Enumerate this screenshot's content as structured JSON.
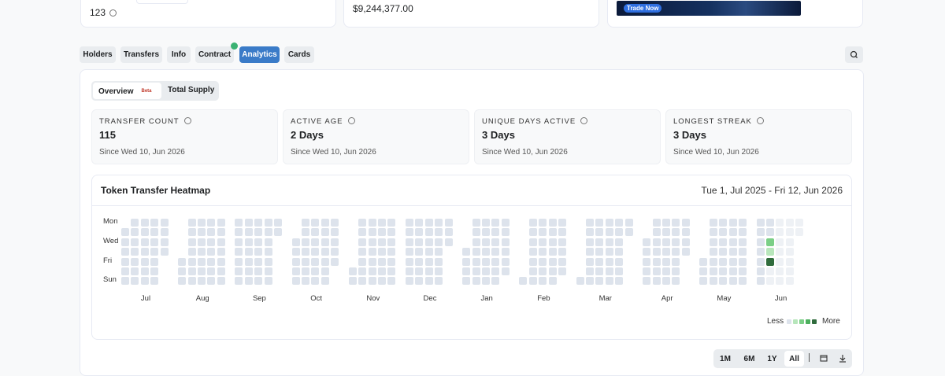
{
  "top_cards": {
    "holders_count": "123",
    "value": "$9,244,377.00",
    "banner_button": "Trade Now"
  },
  "tabs": [
    "Holders",
    "Transfers",
    "Info",
    "Contract",
    "Analytics",
    "Cards"
  ],
  "sub_tabs": {
    "overview": "Overview",
    "beta_badge": "Beta",
    "total_supply": "Total Supply"
  },
  "stats": [
    {
      "label": "TRANSFER COUNT",
      "value": "115",
      "since": "Since Wed 10, Jun 2026"
    },
    {
      "label": "ACTIVE AGE",
      "value": "2 Days",
      "since": "Since Wed 10, Jun 2026"
    },
    {
      "label": "UNIQUE DAYS ACTIVE",
      "value": "3 Days",
      "since": "Since Wed 10, Jun 2026"
    },
    {
      "label": "LONGEST STREAK",
      "value": "3 Days",
      "since": "Since Wed 10, Jun 2026"
    }
  ],
  "heatmap": {
    "title": "Token Transfer Heatmap",
    "range": "Tue 1, Jul 2025 - Fri 12, Jun 2026",
    "day_labels": [
      "Mon",
      "Wed",
      "Fri",
      "Sun"
    ],
    "month_labels": [
      "Jul",
      "Aug",
      "Sep",
      "Oct",
      "Nov",
      "Dec",
      "Jan",
      "Feb",
      "Mar",
      "Apr",
      "May",
      "Jun"
    ],
    "legend_less": "Less",
    "legend_more": "More"
  },
  "range_buttons": [
    "1M",
    "6M",
    "1Y",
    "All"
  ]
}
